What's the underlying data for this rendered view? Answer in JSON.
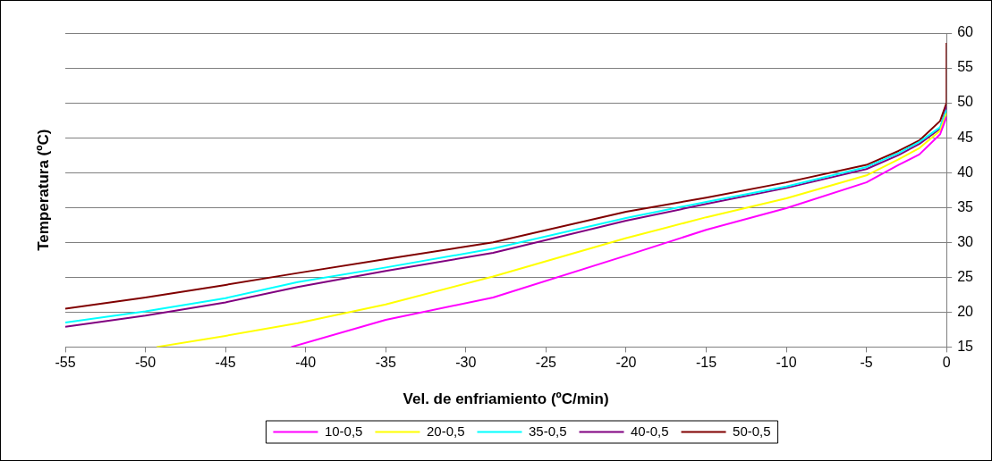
{
  "chart_data": {
    "type": "line",
    "xlabel": "Vel. de enfriamiento (ºC/min)",
    "ylabel": "Temperatura (ºC)",
    "xlim": [
      -55,
      0
    ],
    "xticks": [
      -55,
      -50,
      -45,
      -40,
      -35,
      -30,
      -25,
      -20,
      -15,
      -10,
      -5,
      0
    ],
    "ylim": [
      15,
      60
    ],
    "yticks": [
      15,
      20,
      25,
      30,
      35,
      40,
      45,
      50,
      55,
      60
    ],
    "grid": "y",
    "legend": "bottom",
    "marker": "none",
    "line_style": "solid",
    "series": [
      {
        "name": "10-0,5",
        "color": "#ff00ff",
        "x": [
          -40.9,
          -35,
          -28.3,
          -20,
          -15,
          -10,
          -5,
          -3,
          -1.7,
          -0.4,
          0
        ],
        "values": [
          15,
          18.9,
          22.1,
          28.1,
          31.8,
          34.9,
          38.6,
          41.1,
          42.6,
          45.5,
          48
        ]
      },
      {
        "name": "20-0,5",
        "color": "#ffff00",
        "x": [
          -49.3,
          -45,
          -40.5,
          -35,
          -28.3,
          -20,
          -15,
          -10,
          -5,
          -3,
          -1.7,
          -0.4,
          0
        ],
        "values": [
          15,
          16.6,
          18.4,
          21.1,
          25.1,
          30.6,
          33.6,
          36.3,
          39.6,
          41.9,
          43.5,
          46,
          48.5
        ]
      },
      {
        "name": "35-0,5",
        "color": "#00ffff",
        "x": [
          -55,
          -50,
          -45,
          -40.5,
          -35,
          -28.3,
          -20,
          -15,
          -10,
          -5,
          -3,
          -1.7,
          -0.4,
          0
        ],
        "values": [
          18.5,
          20.1,
          22,
          24.3,
          26.4,
          29.1,
          33.5,
          35.8,
          38,
          40.8,
          42.8,
          44.4,
          46.5,
          49
        ]
      },
      {
        "name": "40-0,5",
        "color": "#800080",
        "x": [
          -55,
          -50,
          -45,
          -40.5,
          -35,
          -28.3,
          -20,
          -15,
          -10,
          -5,
          -3,
          -1.7,
          -0.4,
          0
        ],
        "values": [
          17.9,
          19.5,
          21.4,
          23.6,
          25.9,
          28.5,
          33.1,
          35.5,
          37.8,
          40.5,
          42.5,
          44.1,
          46.3,
          49.5
        ]
      },
      {
        "name": "50-0,5",
        "color": "#800000",
        "x": [
          -55,
          -50,
          -45,
          -40.5,
          -35,
          -28.3,
          -20,
          -15,
          -10,
          -5,
          -3,
          -1.7,
          -0.4,
          0,
          0
        ],
        "values": [
          20.5,
          22.1,
          23.9,
          25.6,
          27.6,
          30,
          34.4,
          36.4,
          38.6,
          41.1,
          43.1,
          44.6,
          47.4,
          50,
          58.6
        ]
      }
    ]
  }
}
